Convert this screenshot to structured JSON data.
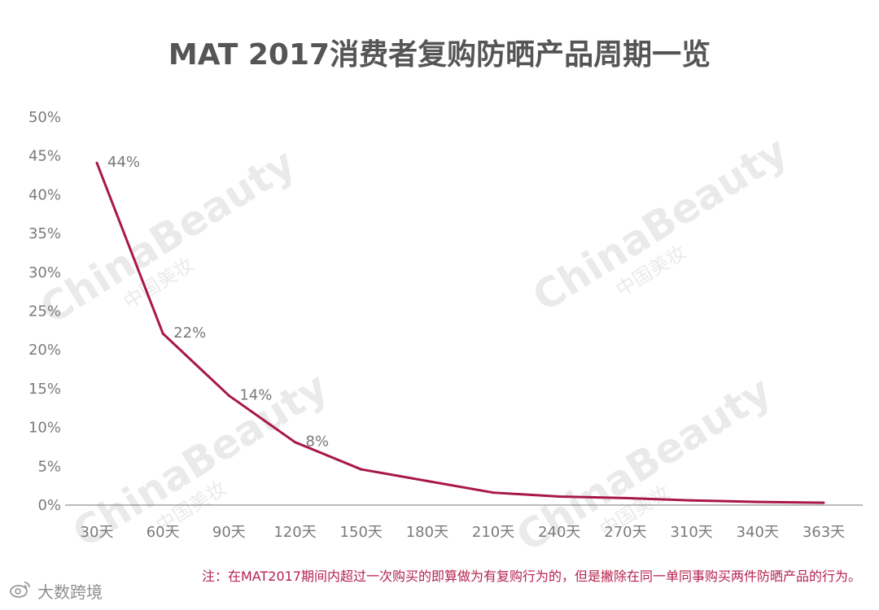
{
  "title": "MAT 2017消费者复购防晒产品周期一览",
  "chart_data": {
    "type": "line",
    "categories": [
      "30天",
      "60天",
      "90天",
      "120天",
      "150天",
      "180天",
      "210天",
      "240天",
      "270天",
      "310天",
      "340天",
      "363天"
    ],
    "series": [
      {
        "values": [
          44,
          22,
          14,
          8,
          4.5,
          3,
          1.5,
          1,
          0.8,
          0.5,
          0.3,
          0.2
        ],
        "data_labels": [
          "44%",
          "22%",
          "14%",
          "8%",
          null,
          null,
          null,
          null,
          null,
          null,
          null,
          null
        ]
      }
    ],
    "y_ticks": [
      "0%",
      "5%",
      "10%",
      "15%",
      "20%",
      "25%",
      "30%",
      "35%",
      "40%",
      "45%",
      "50%"
    ],
    "ylim": [
      0,
      50
    ],
    "grid": false,
    "line_color": "#a8174a",
    "label_color": "#777777"
  },
  "note": "注：在MAT2017期间内超过一次购买的即算做为有复购行为的，但是撇除在同一单同事购买两件防晒产品的行为。",
  "watermark": {
    "chart_text": "ChinaBeauty",
    "chart_subtext": "中国美妆",
    "corner_text": "大数跨境"
  }
}
